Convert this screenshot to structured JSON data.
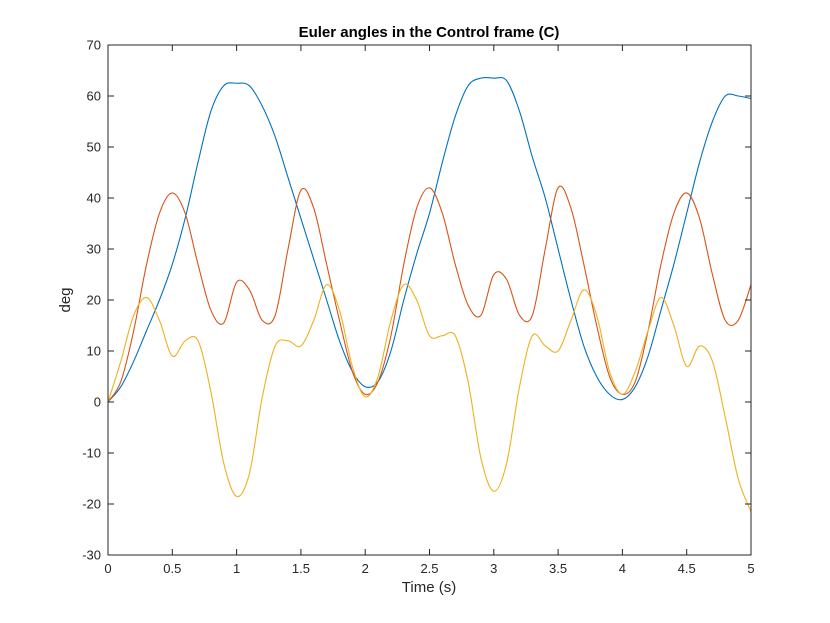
{
  "chart_data": {
    "type": "line",
    "title": "Euler angles in the Control frame (C)",
    "xlabel": "Time (s)",
    "ylabel": "deg",
    "xlim": [
      0,
      5
    ],
    "ylim": [
      -30,
      70
    ],
    "xticks": [
      0,
      0.5,
      1,
      1.5,
      2,
      2.5,
      3,
      3.5,
      4,
      4.5,
      5
    ],
    "xtick_labels": [
      "0",
      "0.5",
      "1",
      "1.5",
      "2",
      "2.5",
      "3",
      "3.5",
      "4",
      "4.5",
      "5"
    ],
    "yticks": [
      -30,
      -20,
      -10,
      0,
      10,
      20,
      30,
      40,
      50,
      60,
      70
    ],
    "ytick_labels": [
      "-30",
      "-20",
      "-10",
      "0",
      "10",
      "20",
      "30",
      "40",
      "50",
      "60",
      "70"
    ],
    "grid": false,
    "legend": "none",
    "series": [
      {
        "color": "#0072BD",
        "x": [
          0,
          0.1,
          0.2,
          0.3,
          0.4,
          0.5,
          0.6,
          0.7,
          0.8,
          0.9,
          1.0,
          1.1,
          1.2,
          1.3,
          1.4,
          1.5,
          1.6,
          1.7,
          1.8,
          1.9,
          2.0,
          2.1,
          2.2,
          2.3,
          2.4,
          2.5,
          2.6,
          2.7,
          2.8,
          2.9,
          3.0,
          3.1,
          3.2,
          3.3,
          3.4,
          3.5,
          3.6,
          3.7,
          3.8,
          3.9,
          4.0,
          4.1,
          4.2,
          4.3,
          4.4,
          4.5,
          4.6,
          4.7,
          4.8,
          4.9,
          5.0
        ],
        "y": [
          0,
          3,
          8,
          14,
          20,
          27,
          36,
          47,
          57,
          62,
          62.5,
          62,
          58,
          52,
          44,
          36,
          28,
          20,
          12,
          6,
          3,
          4,
          10,
          20,
          29,
          37,
          47,
          56,
          62,
          63.5,
          63.5,
          63,
          57,
          48,
          40,
          30,
          20,
          11,
          5,
          1.5,
          0.5,
          3,
          9,
          18,
          27,
          37,
          47,
          55,
          60,
          60,
          59.5
        ]
      },
      {
        "color": "#D95319",
        "x": [
          0,
          0.1,
          0.2,
          0.3,
          0.4,
          0.5,
          0.6,
          0.7,
          0.8,
          0.9,
          1.0,
          1.1,
          1.2,
          1.3,
          1.4,
          1.5,
          1.6,
          1.7,
          1.8,
          1.9,
          2.0,
          2.1,
          2.2,
          2.3,
          2.4,
          2.5,
          2.6,
          2.7,
          2.8,
          2.9,
          3.0,
          3.1,
          3.2,
          3.3,
          3.4,
          3.5,
          3.6,
          3.7,
          3.8,
          3.9,
          4.0,
          4.1,
          4.2,
          4.3,
          4.4,
          4.5,
          4.6,
          4.7,
          4.8,
          4.9,
          5.0
        ],
        "y": [
          0,
          4,
          14,
          27,
          37,
          41,
          37,
          27,
          18,
          15.5,
          23.5,
          22,
          16,
          17,
          30,
          41.5,
          38,
          27,
          16,
          6,
          1.5,
          4,
          13,
          27,
          38,
          42,
          37,
          27,
          19,
          17,
          25,
          24,
          17,
          17,
          30,
          42,
          38,
          27,
          15,
          5,
          1.5,
          4,
          14,
          27,
          37,
          41,
          36,
          25,
          16,
          16,
          23
        ]
      },
      {
        "color": "#EDB120",
        "x": [
          0,
          0.1,
          0.2,
          0.3,
          0.4,
          0.5,
          0.6,
          0.7,
          0.8,
          0.9,
          1.0,
          1.1,
          1.2,
          1.3,
          1.4,
          1.5,
          1.6,
          1.7,
          1.8,
          1.9,
          2.0,
          2.1,
          2.2,
          2.3,
          2.4,
          2.5,
          2.6,
          2.7,
          2.8,
          2.9,
          3.0,
          3.1,
          3.2,
          3.3,
          3.4,
          3.5,
          3.6,
          3.7,
          3.8,
          3.9,
          4.0,
          4.1,
          4.2,
          4.3,
          4.4,
          4.5,
          4.6,
          4.7,
          4.8,
          4.9,
          5.0
        ],
        "y": [
          0,
          8,
          17,
          20.5,
          16,
          9,
          12,
          12,
          2,
          -12,
          -18.5,
          -14,
          1,
          11,
          12,
          11,
          16,
          23,
          18,
          7,
          1,
          5,
          16,
          23,
          20,
          13,
          13,
          13,
          4,
          -11,
          -17.5,
          -12,
          3,
          13,
          11,
          10,
          16,
          22,
          17,
          6,
          1.5,
          6,
          14,
          20.5,
          15,
          7,
          11,
          8,
          -3,
          -15,
          -21.5
        ]
      }
    ]
  }
}
